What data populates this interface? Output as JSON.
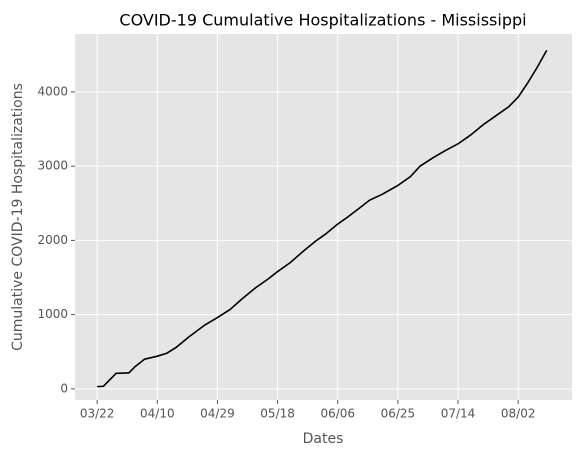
{
  "chart_data": {
    "type": "line",
    "title": "COVID-19 Cumulative Hospitalizations - Mississippi",
    "x_label": "Dates",
    "y_label": "Cumulative COVID-19 Hospitalizations",
    "x": [
      "03/22",
      "03/24",
      "03/25",
      "03/28",
      "04/01",
      "04/03",
      "04/06",
      "04/10",
      "04/13",
      "04/16",
      "04/20",
      "04/25",
      "04/29",
      "05/03",
      "05/07",
      "05/11",
      "05/15",
      "05/18",
      "05/22",
      "05/26",
      "05/30",
      "06/02",
      "06/06",
      "06/09",
      "06/13",
      "06/16",
      "06/20",
      "06/25",
      "06/29",
      "07/02",
      "07/06",
      "07/10",
      "07/14",
      "07/18",
      "07/22",
      "07/26",
      "07/30",
      "08/02",
      "08/05",
      "08/08",
      "08/11"
    ],
    "series": [
      {
        "name": "Mississippi",
        "color": "#000000",
        "values": [
          30,
          35,
          80,
          210,
          215,
          300,
          400,
          440,
          480,
          560,
          700,
          860,
          960,
          1070,
          1220,
          1360,
          1480,
          1580,
          1700,
          1850,
          1990,
          2080,
          2220,
          2310,
          2440,
          2540,
          2620,
          2740,
          2860,
          3000,
          3110,
          3210,
          3300,
          3420,
          3560,
          3680,
          3800,
          3930,
          4120,
          4330,
          4560
        ]
      }
    ],
    "xlim": [
      "03/15",
      "08/19"
    ],
    "xticks": [
      "03/22",
      "04/10",
      "04/29",
      "05/18",
      "06/06",
      "06/25",
      "07/14",
      "08/02"
    ],
    "ylim": [
      -150,
      4780
    ],
    "yticks": [
      0,
      1000,
      2000,
      3000,
      4000
    ],
    "grid": true
  }
}
